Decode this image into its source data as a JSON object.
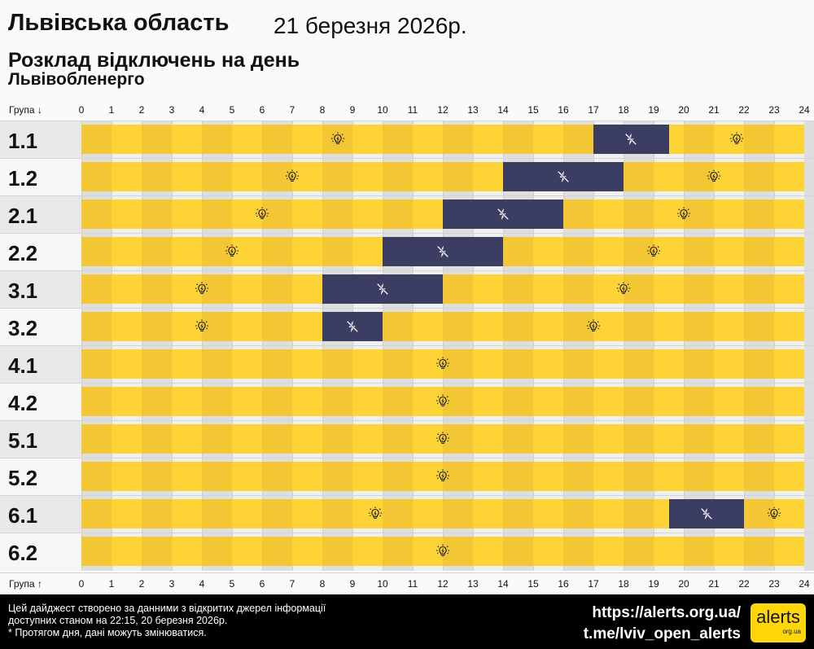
{
  "header": {
    "region": "Львівська область",
    "date": "21 березня 2026р.",
    "subtitle": "Розклад відключень на день",
    "provider": "Львівобленерго"
  },
  "chart_data": {
    "type": "table",
    "x_range": [
      0,
      24
    ],
    "ticks": [
      0,
      1,
      2,
      3,
      4,
      5,
      6,
      7,
      8,
      9,
      10,
      11,
      12,
      13,
      14,
      15,
      16,
      17,
      18,
      19,
      20,
      21,
      22,
      23,
      24
    ],
    "axis_label_top": "Група ↓",
    "axis_label_bottom": "Група ↑",
    "colors": {
      "power_on": "#fdd335",
      "power_on_alt": "#f3c733",
      "power_off": "#3b3d63"
    },
    "icons": {
      "power_on": "lightbulb-icon",
      "power_off": "power-off-icon"
    },
    "groups": [
      {
        "name": "1.1",
        "outages": [
          [
            17,
            19.5
          ]
        ]
      },
      {
        "name": "1.2",
        "outages": [
          [
            14,
            18
          ]
        ]
      },
      {
        "name": "2.1",
        "outages": [
          [
            12,
            16
          ]
        ]
      },
      {
        "name": "2.2",
        "outages": [
          [
            10,
            14
          ]
        ]
      },
      {
        "name": "3.1",
        "outages": [
          [
            8,
            12
          ]
        ]
      },
      {
        "name": "3.2",
        "outages": [
          [
            8,
            10
          ]
        ]
      },
      {
        "name": "4.1",
        "outages": []
      },
      {
        "name": "4.2",
        "outages": []
      },
      {
        "name": "5.1",
        "outages": []
      },
      {
        "name": "5.2",
        "outages": []
      },
      {
        "name": "6.1",
        "outages": [
          [
            19.5,
            22
          ]
        ]
      },
      {
        "name": "6.2",
        "outages": []
      }
    ]
  },
  "footer": {
    "line1": "Цей дайджест створено за данними з відкритих джерел інформації",
    "line2": "доступних станом на 22:15, 20 березня 2026р.",
    "line3": "* Протягом дня, дані можуть змінюватися.",
    "link1": "https://alerts.org.ua/",
    "link2": "t.me/lviv_open_alerts",
    "logo": "alerts",
    "logo_sub": "org.ua"
  }
}
